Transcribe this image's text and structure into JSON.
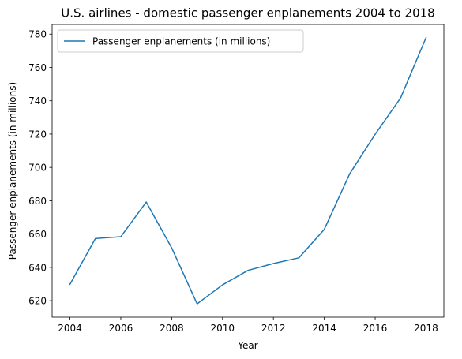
{
  "chart_data": {
    "type": "line",
    "title": "U.S. airlines - domestic passenger enplanements 2004 to 2018",
    "xlabel": "Year",
    "ylabel": "Passenger enplanements (in millions)",
    "x": [
      2004,
      2005,
      2006,
      2007,
      2008,
      2009,
      2010,
      2011,
      2012,
      2013,
      2014,
      2015,
      2016,
      2017,
      2018
    ],
    "series": [
      {
        "name": "Passenger enplanements (in millions)",
        "color": "#1f77b4",
        "values": [
          629.8,
          657.3,
          658.4,
          679.2,
          651.7,
          618.1,
          629.5,
          638.2,
          642.3,
          645.7,
          662.8,
          696.2,
          719.9,
          741.7,
          777.9
        ]
      }
    ],
    "xlim": [
      2003.3,
      2018.7
    ],
    "ylim": [
      610.1,
      785.8
    ],
    "xticks": [
      2004,
      2006,
      2008,
      2010,
      2012,
      2014,
      2016,
      2018
    ],
    "yticks": [
      620,
      640,
      660,
      680,
      700,
      720,
      740,
      760,
      780
    ],
    "grid": false,
    "legend_position": "upper-left"
  }
}
